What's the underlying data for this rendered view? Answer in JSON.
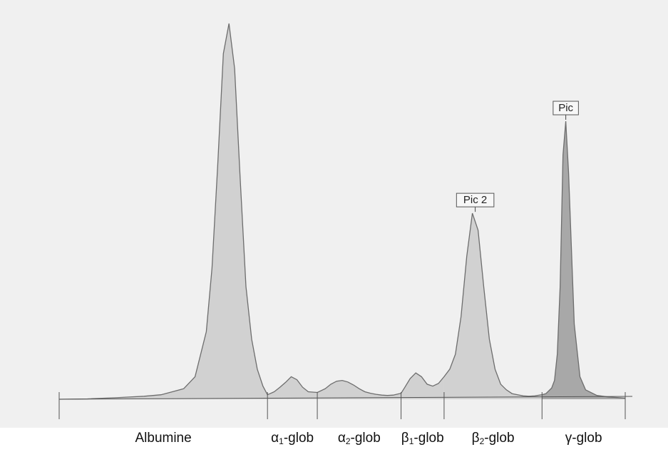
{
  "chart_data": {
    "type": "area",
    "title": "",
    "xlabel": "",
    "ylabel": "",
    "grid": false,
    "x_unit": "relative migration",
    "fractions": [
      {
        "key": "albumine",
        "greek": "",
        "sub": "",
        "suffix": "Albumine",
        "start": 0.0,
        "end": 0.368
      },
      {
        "key": "alpha1",
        "greek": "α",
        "sub": "1",
        "suffix": "-glob",
        "start": 0.368,
        "end": 0.456
      },
      {
        "key": "alpha2",
        "greek": "α",
        "sub": "2",
        "suffix": "-glob",
        "start": 0.456,
        "end": 0.604
      },
      {
        "key": "beta1",
        "greek": "β",
        "sub": "1",
        "suffix": "-glob",
        "start": 0.604,
        "end": 0.68
      },
      {
        "key": "beta2",
        "greek": "β",
        "sub": "2",
        "suffix": "-glob",
        "start": 0.68,
        "end": 0.853
      },
      {
        "key": "gamma",
        "greek": "γ",
        "sub": "",
        "suffix": "-glob",
        "start": 0.853,
        "end": 1.0
      }
    ],
    "series": [
      {
        "x": [
          0.0,
          0.05,
          0.1,
          0.15,
          0.18,
          0.2,
          0.22,
          0.24,
          0.26,
          0.27,
          0.28,
          0.29,
          0.3,
          0.31,
          0.32,
          0.33,
          0.34,
          0.35,
          0.36,
          0.368,
          0.38,
          0.39,
          0.4,
          0.41,
          0.42,
          0.43,
          0.44,
          0.456,
          0.47,
          0.48,
          0.49,
          0.5,
          0.51,
          0.52,
          0.53,
          0.54,
          0.55,
          0.56,
          0.57,
          0.58,
          0.59,
          0.604,
          0.61,
          0.62,
          0.63,
          0.64,
          0.65,
          0.66,
          0.67,
          0.68,
          0.69,
          0.7,
          0.71,
          0.72,
          0.73,
          0.74,
          0.75,
          0.76,
          0.77,
          0.78,
          0.79,
          0.8,
          0.81,
          0.82,
          0.83,
          0.84,
          0.853,
          0.86,
          0.87,
          0.875,
          0.88,
          0.885,
          0.89,
          0.895,
          0.9,
          0.91,
          0.92,
          0.93,
          0.95,
          0.97,
          1.0
        ],
        "y": [
          0.0,
          0.1,
          0.4,
          0.8,
          1.2,
          2.0,
          2.8,
          6.0,
          18.0,
          35.0,
          62.0,
          92.0,
          100.0,
          88.0,
          58.0,
          30.0,
          16.0,
          8.0,
          3.5,
          1.2,
          2.0,
          3.2,
          4.5,
          6.0,
          5.2,
          3.2,
          2.0,
          1.8,
          2.8,
          4.0,
          4.8,
          5.0,
          4.6,
          3.8,
          2.8,
          2.0,
          1.6,
          1.3,
          1.1,
          1.0,
          1.1,
          1.6,
          3.0,
          5.5,
          7.0,
          6.0,
          4.0,
          3.5,
          4.2,
          6.0,
          8.0,
          12.0,
          22.0,
          38.0,
          49.5,
          45.0,
          30.0,
          16.0,
          8.0,
          4.0,
          2.5,
          1.5,
          1.2,
          0.9,
          0.8,
          0.9,
          1.2,
          1.5,
          3.0,
          5.0,
          12.0,
          30.0,
          65.0,
          74.0,
          60.0,
          20.0,
          6.0,
          2.5,
          1.0,
          0.6,
          0.3
        ]
      }
    ],
    "annotations": [
      {
        "text": "Pic 2",
        "x": 0.735,
        "y": 49.5
      },
      {
        "text": "Pic",
        "x": 0.895,
        "y": 74.0
      }
    ],
    "ylim": [
      0,
      100
    ],
    "xlim": [
      0,
      1
    ],
    "colors": {
      "curve": "#6d6d6d",
      "fill": "#cdcdcd",
      "fill_gamma": "#a0a0a0",
      "axis": "#555555",
      "background": "#f0f0f0"
    }
  }
}
